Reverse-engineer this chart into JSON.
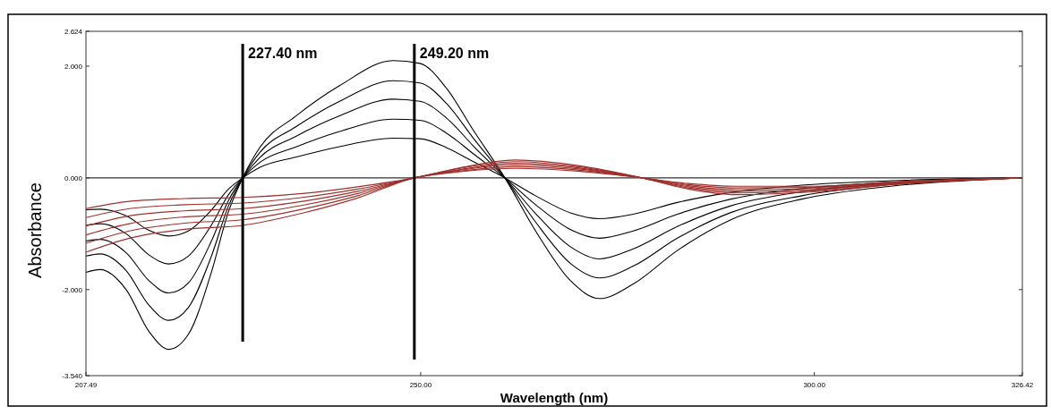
{
  "chart_data": {
    "type": "line",
    "xlabel": "Wavelength (nm)",
    "ylabel": "Absorbance",
    "xlim": [
      207.49,
      326.42
    ],
    "xticks": [
      {
        "value": 207.49,
        "label": "207.49"
      },
      {
        "value": 250,
        "label": "250.00"
      },
      {
        "value": 300,
        "label": "300.00"
      },
      {
        "value": 326.42,
        "label": "326.42"
      }
    ],
    "ylim": [
      -3.54,
      2.624
    ],
    "yticks": [
      {
        "value": -3.54,
        "label": "-3.540"
      },
      {
        "value": -2,
        "label": "-2.000"
      },
      {
        "value": 0,
        "label": "0.000"
      },
      {
        "value": 2,
        "label": "2.000"
      },
      {
        "value": 2.624,
        "label": "2.624"
      }
    ],
    "grid": false,
    "line_style": "solid",
    "ref_lines": [
      {
        "axis": "y",
        "value": 0,
        "color": "#333333"
      },
      {
        "axis": "x",
        "value": 227.4,
        "label": "227.40 nm",
        "color": "#000000"
      },
      {
        "axis": "x",
        "value": 249.2,
        "label": "249.20 nm",
        "color": "#000000"
      }
    ],
    "series": [
      {
        "color": "#000000",
        "x": [
          207.49,
          209.3,
          212.6,
          215.5,
          218.0,
          220.5,
          223.4,
          225.6,
          227.4,
          229.6,
          234.1,
          239.7,
          246.5,
          249.9,
          253.3,
          256.7,
          260.7,
          264.6,
          269.1,
          272.7,
          277.0,
          282.6,
          289.4,
          298.4,
          309.7,
          326.42
        ],
        "values": [
          -0.57,
          -0.56,
          -0.68,
          -0.94,
          -1.04,
          -0.95,
          -0.58,
          -0.2,
          0,
          0.19,
          0.37,
          0.56,
          0.71,
          0.7,
          0.54,
          0.29,
          0,
          -0.32,
          -0.63,
          -0.73,
          -0.65,
          -0.44,
          -0.26,
          -0.13,
          -0.05,
          0
        ]
      },
      {
        "color": "#000000",
        "x": [
          207.49,
          209.3,
          212.6,
          215.5,
          218.0,
          220.5,
          223.4,
          225.6,
          227.4,
          229.6,
          234.1,
          239.7,
          246.5,
          249.9,
          253.3,
          256.7,
          260.7,
          264.6,
          269.1,
          272.7,
          277.0,
          282.6,
          289.4,
          298.4,
          309.7,
          326.42
        ],
        "values": [
          -0.85,
          -0.82,
          -1.0,
          -1.38,
          -1.54,
          -1.4,
          -0.85,
          -0.3,
          0,
          0.28,
          0.55,
          0.83,
          1.05,
          1.03,
          0.8,
          0.43,
          0,
          -0.48,
          -0.93,
          -1.08,
          -0.95,
          -0.65,
          -0.38,
          -0.19,
          -0.08,
          0
        ]
      },
      {
        "color": "#000000",
        "x": [
          207.49,
          209.3,
          212.6,
          215.5,
          218.0,
          220.5,
          223.4,
          225.6,
          227.4,
          229.6,
          234.1,
          239.7,
          246.5,
          249.9,
          253.3,
          256.7,
          260.7,
          264.6,
          269.1,
          272.7,
          277.0,
          282.6,
          289.4,
          298.4,
          309.7,
          326.42
        ],
        "values": [
          -1.13,
          -1.1,
          -1.34,
          -1.84,
          -2.06,
          -1.88,
          -1.14,
          -0.4,
          0,
          0.37,
          0.74,
          1.11,
          1.41,
          1.37,
          1.07,
          0.57,
          0,
          -0.64,
          -1.24,
          -1.45,
          -1.27,
          -0.87,
          -0.5,
          -0.25,
          -0.1,
          0
        ]
      },
      {
        "color": "#000000",
        "x": [
          207.49,
          209.3,
          212.6,
          215.5,
          218.0,
          220.5,
          223.4,
          225.6,
          227.4,
          229.6,
          234.1,
          239.7,
          246.5,
          249.9,
          253.3,
          256.7,
          260.7,
          264.6,
          269.1,
          272.7,
          277.0,
          282.6,
          289.4,
          298.4,
          309.7,
          326.42
        ],
        "values": [
          -1.4,
          -1.36,
          -1.66,
          -2.28,
          -2.55,
          -2.32,
          -1.41,
          -0.5,
          0,
          0.46,
          0.91,
          1.37,
          1.74,
          1.7,
          1.33,
          0.71,
          0,
          -0.79,
          -1.54,
          -1.79,
          -1.58,
          -1.08,
          -0.62,
          -0.32,
          -0.12,
          0
        ]
      },
      {
        "color": "#000000",
        "x": [
          207.49,
          209.3,
          212.6,
          215.5,
          218.0,
          220.5,
          223.4,
          225.6,
          227.4,
          229.6,
          234.1,
          239.7,
          246.5,
          249.9,
          253.3,
          256.7,
          260.7,
          264.6,
          269.1,
          272.7,
          277.0,
          282.6,
          289.4,
          298.4,
          309.7,
          326.42
        ],
        "values": [
          -1.69,
          -1.64,
          -2.0,
          -2.75,
          -3.07,
          -2.8,
          -1.7,
          -0.6,
          0,
          0.55,
          1.1,
          1.65,
          2.1,
          2.05,
          1.6,
          0.85,
          0,
          -0.95,
          -1.85,
          -2.16,
          -1.9,
          -1.3,
          -0.75,
          -0.38,
          -0.15,
          0
        ]
      },
      {
        "color": "#a0302c",
        "x": [
          207.49,
          213,
          220,
          227.4,
          235,
          242,
          249.2,
          255,
          262,
          270,
          278.1,
          284,
          290,
          300,
          310,
          326.42
        ],
        "values": [
          -0.55,
          -0.42,
          -0.37,
          -0.35,
          -0.28,
          -0.16,
          0,
          0.18,
          0.32,
          0.22,
          0,
          -0.2,
          -0.3,
          -0.25,
          -0.12,
          0
        ]
      },
      {
        "color": "#a0302c",
        "x": [
          207.49,
          213,
          220,
          227.4,
          235,
          242,
          249.2,
          255,
          262,
          270,
          278.1,
          284,
          290,
          300,
          310,
          326.42
        ],
        "values": [
          -0.71,
          -0.55,
          -0.48,
          -0.45,
          -0.35,
          -0.2,
          0,
          0.17,
          0.29,
          0.2,
          0,
          -0.18,
          -0.27,
          -0.23,
          -0.11,
          0
        ]
      },
      {
        "color": "#a0302c",
        "x": [
          207.49,
          213,
          220,
          227.4,
          235,
          242,
          249.2,
          255,
          262,
          270,
          278.1,
          284,
          290,
          300,
          310,
          326.42
        ],
        "values": [
          -0.86,
          -0.68,
          -0.59,
          -0.55,
          -0.42,
          -0.24,
          0,
          0.15,
          0.26,
          0.18,
          0,
          -0.16,
          -0.24,
          -0.21,
          -0.1,
          0
        ]
      },
      {
        "color": "#a0302c",
        "x": [
          207.49,
          213,
          220,
          227.4,
          235,
          242,
          249.2,
          255,
          262,
          270,
          278.1,
          284,
          290,
          300,
          310,
          326.42
        ],
        "values": [
          -1.02,
          -0.82,
          -0.7,
          -0.65,
          -0.49,
          -0.28,
          0,
          0.14,
          0.23,
          0.16,
          0,
          -0.14,
          -0.21,
          -0.19,
          -0.09,
          0
        ]
      },
      {
        "color": "#a0302c",
        "x": [
          207.49,
          213,
          220,
          227.4,
          235,
          242,
          249.2,
          255,
          262,
          270,
          278.1,
          284,
          290,
          300,
          310,
          326.42
        ],
        "values": [
          -1.17,
          -0.95,
          -0.81,
          -0.75,
          -0.56,
          -0.32,
          0,
          0.12,
          0.2,
          0.14,
          0,
          -0.12,
          -0.18,
          -0.17,
          -0.08,
          0
        ]
      },
      {
        "color": "#a0302c",
        "x": [
          207.49,
          213,
          220,
          227.4,
          235,
          242,
          249.2,
          255,
          262,
          270,
          278.1,
          284,
          290,
          300,
          310,
          326.42
        ],
        "values": [
          -1.33,
          -1.08,
          -0.92,
          -0.85,
          -0.63,
          -0.36,
          0,
          0.11,
          0.17,
          0.12,
          0,
          -0.1,
          -0.15,
          -0.15,
          -0.07,
          0
        ]
      }
    ]
  }
}
